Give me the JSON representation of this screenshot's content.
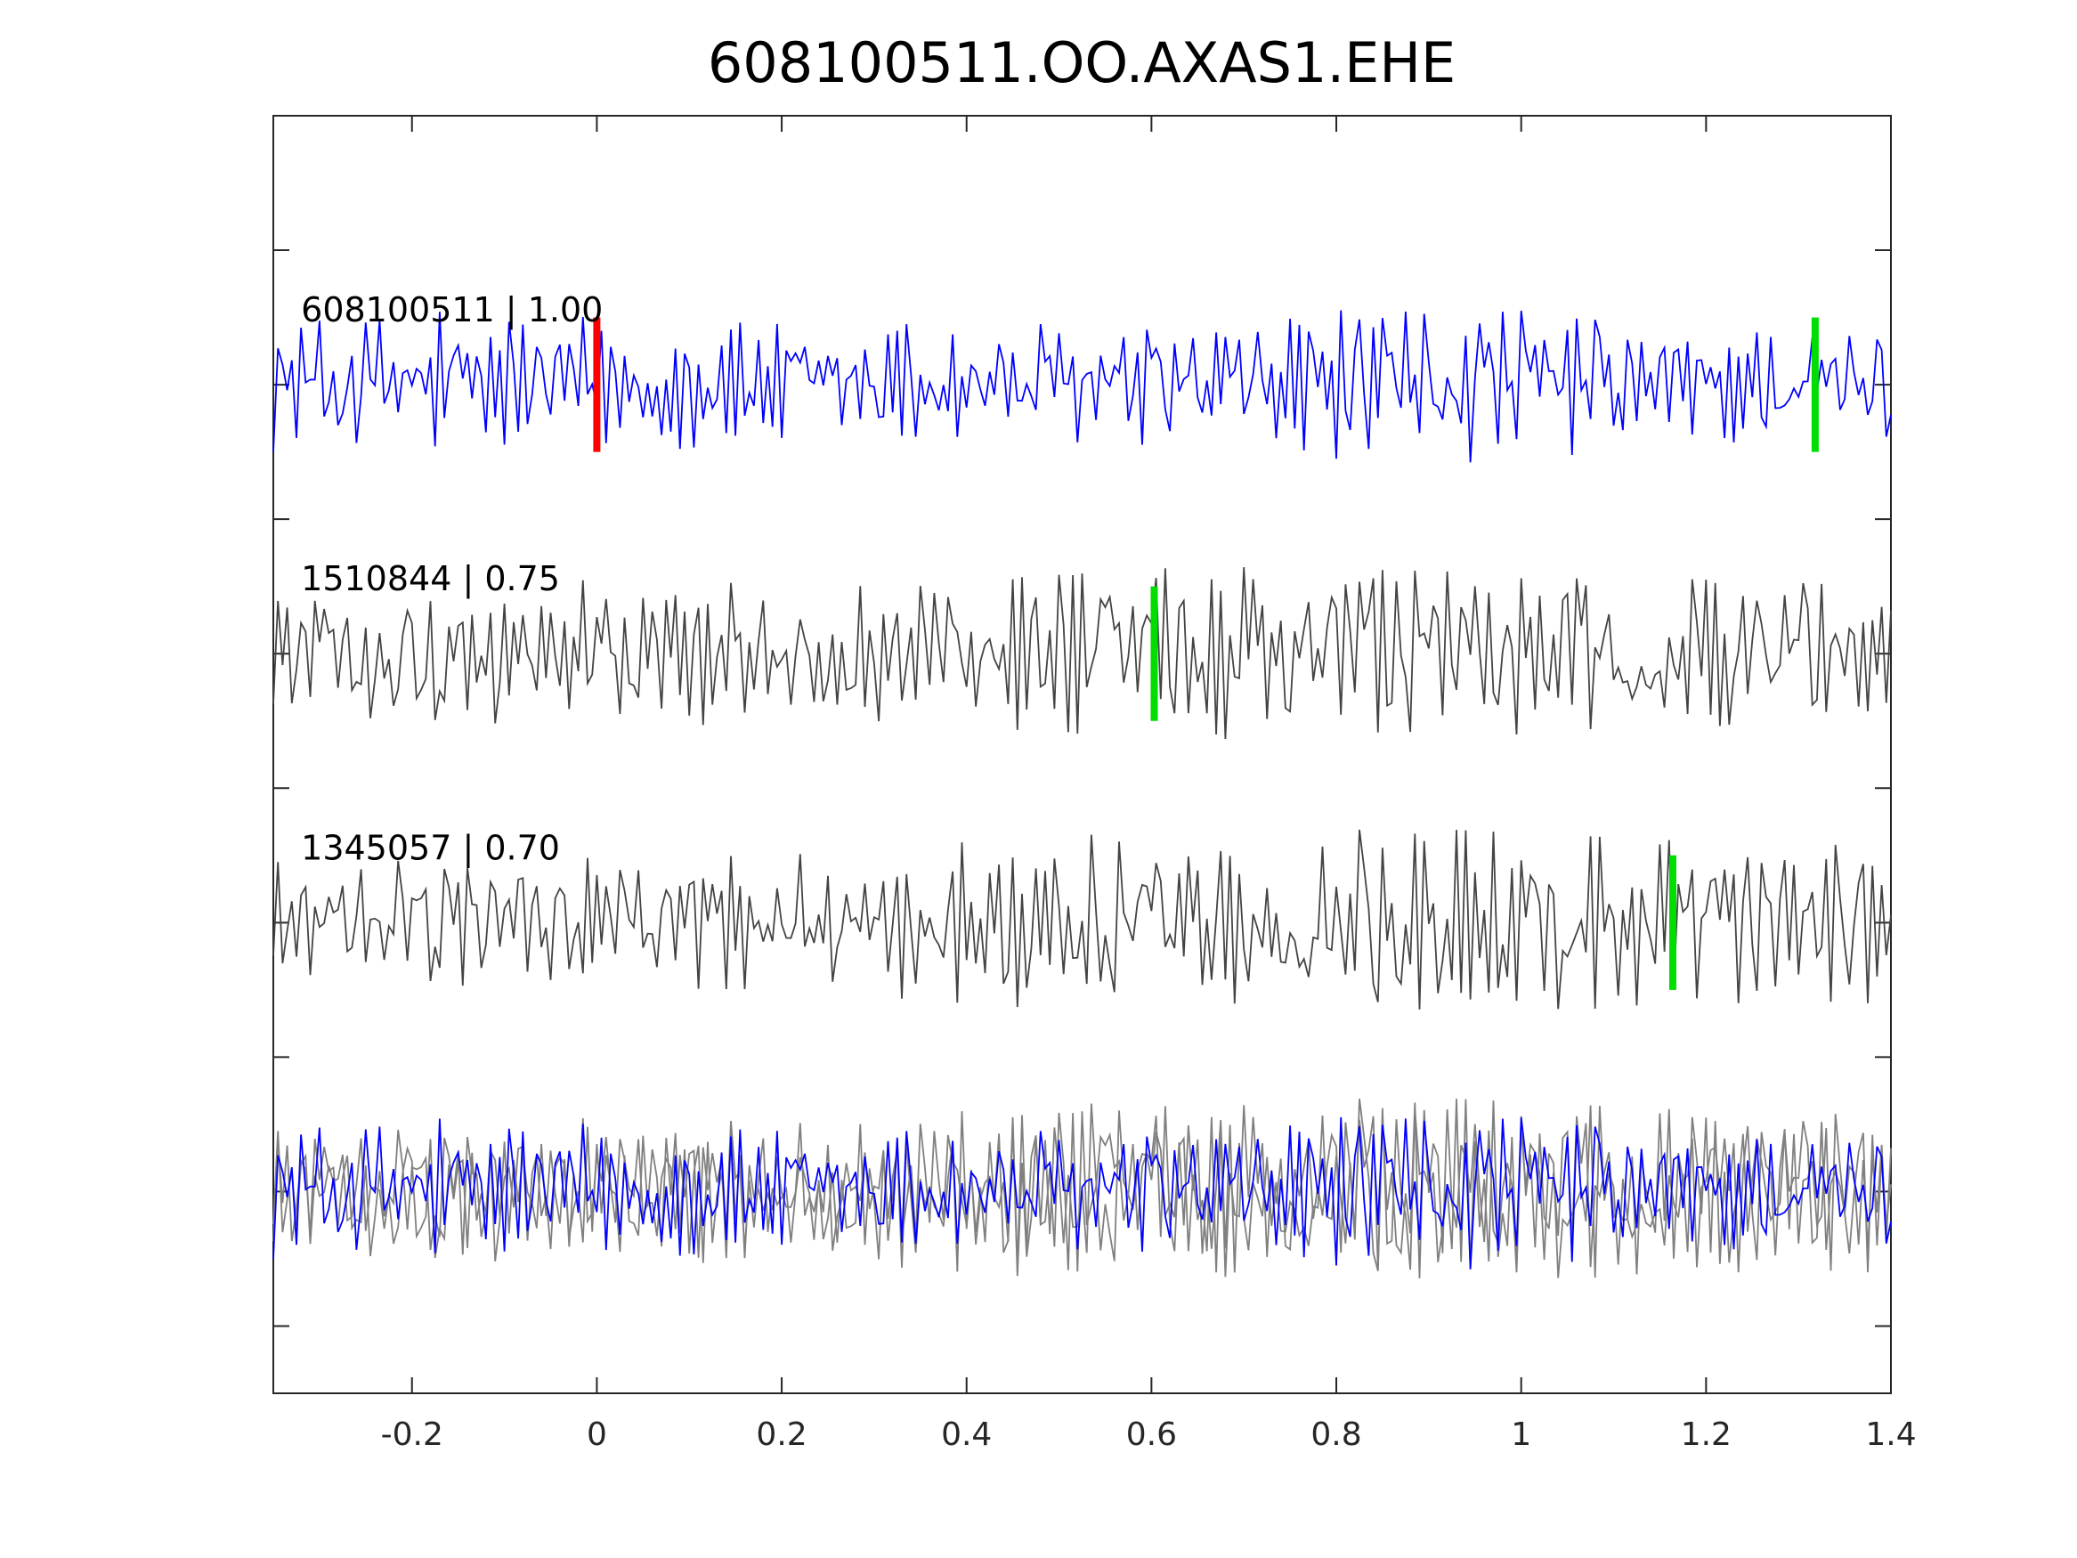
{
  "chart_data": {
    "type": "line",
    "title": "608100511.OO.AXAS1.EHE",
    "xlabel": "",
    "ylabel": "",
    "xlim": [
      -0.35,
      1.4
    ],
    "ylim": [
      0,
      9.5
    ],
    "grid": false,
    "x_ticks": [
      -0.2,
      0,
      0.2,
      0.4,
      0.6,
      0.8,
      1,
      1.2,
      1.4
    ],
    "x_tick_labels": [
      "-0.2",
      "0",
      "0.2",
      "0.4",
      "0.6",
      "0.8",
      "1",
      "1.2",
      "1.4"
    ],
    "y_ticks": [
      0.5,
      1.5,
      2.5,
      3.5,
      4.5,
      5.5,
      6.5,
      7.5,
      8.5
    ],
    "sample_interval": 0.005,
    "series": [
      {
        "name": "608100511 | 1.00",
        "color": "#0000ff",
        "baseline": 7.5,
        "amplitude_envelope": [
          [
            -0.35,
            0.5
          ],
          [
            -0.2,
            0.55
          ],
          [
            0.2,
            0.45
          ],
          [
            0.6,
            0.45
          ],
          [
            0.9,
            0.6
          ],
          [
            1.2,
            0.45
          ],
          [
            1.4,
            0.4
          ]
        ],
        "picks": [
          {
            "x": 0.0,
            "color": "#ff0000"
          },
          {
            "x": 1.318,
            "color": "#00dd00"
          }
        ]
      },
      {
        "name": "1510844 | 0.75",
        "color": "#444444",
        "baseline": 5.5,
        "amplitude_envelope": [
          [
            -0.35,
            0.45
          ],
          [
            0.0,
            0.55
          ],
          [
            0.3,
            0.5
          ],
          [
            0.65,
            0.65
          ],
          [
            1.0,
            0.6
          ],
          [
            1.4,
            0.5
          ]
        ],
        "picks": [
          {
            "x": 0.603,
            "color": "#00dd00"
          }
        ]
      },
      {
        "name": "1345057 | 0.70",
        "color": "#444444",
        "baseline": 3.5,
        "amplitude_envelope": [
          [
            -0.35,
            0.45
          ],
          [
            0.2,
            0.5
          ],
          [
            0.5,
            0.65
          ],
          [
            0.9,
            0.7
          ],
          [
            1.2,
            0.6
          ],
          [
            1.4,
            0.6
          ]
        ],
        "picks": [
          {
            "x": 1.164,
            "color": "#00dd00"
          }
        ]
      }
    ],
    "overlay": {
      "baseline": 1.5,
      "traces": [
        {
          "source": "1510844 | 0.75",
          "color": "#808080"
        },
        {
          "source": "1345057 | 0.70",
          "color": "#808080"
        },
        {
          "source": "608100511 | 1.00",
          "color": "#0000ff"
        }
      ]
    }
  }
}
